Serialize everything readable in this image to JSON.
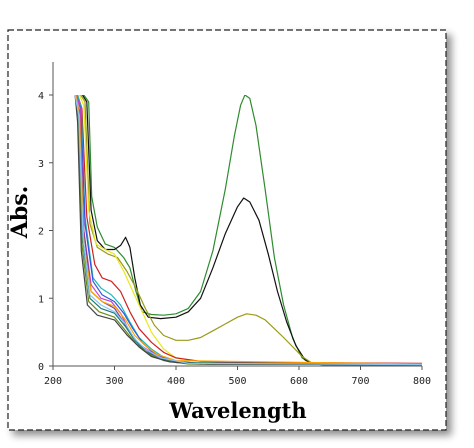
{
  "chart_data": {
    "type": "line",
    "title": "",
    "xlabel": "Wavelength",
    "ylabel": "Abs.",
    "xlim": [
      200,
      800
    ],
    "ylim": [
      0,
      4
    ],
    "xticks": [
      "200",
      "300",
      "400",
      "500",
      "600",
      "700",
      "800"
    ],
    "yticks": [
      "0",
      "1",
      "2",
      "3",
      "4"
    ],
    "grid": false,
    "legend": "none",
    "series": [
      {
        "color": "#2e8b2e",
        "points": [
          [
            250,
            4
          ],
          [
            258,
            3.9
          ],
          [
            263,
            2.5
          ],
          [
            272,
            2.05
          ],
          [
            285,
            1.8
          ],
          [
            300,
            1.75
          ],
          [
            315,
            1.6
          ],
          [
            325,
            1.45
          ],
          [
            335,
            1.1
          ],
          [
            345,
            0.8
          ],
          [
            360,
            0.76
          ],
          [
            380,
            0.75
          ],
          [
            400,
            0.77
          ],
          [
            420,
            0.85
          ],
          [
            440,
            1.1
          ],
          [
            460,
            1.7
          ],
          [
            480,
            2.6
          ],
          [
            495,
            3.4
          ],
          [
            505,
            3.85
          ],
          [
            512,
            4.0
          ],
          [
            520,
            3.95
          ],
          [
            530,
            3.55
          ],
          [
            545,
            2.6
          ],
          [
            560,
            1.6
          ],
          [
            575,
            0.9
          ],
          [
            590,
            0.4
          ],
          [
            605,
            0.12
          ],
          [
            620,
            0.03
          ],
          [
            640,
            0.02
          ],
          [
            700,
            0.02
          ],
          [
            800,
            0.02
          ]
        ]
      },
      {
        "color": "#111111",
        "points": [
          [
            248,
            4
          ],
          [
            255,
            3.9
          ],
          [
            262,
            2.3
          ],
          [
            272,
            1.85
          ],
          [
            285,
            1.72
          ],
          [
            300,
            1.72
          ],
          [
            310,
            1.78
          ],
          [
            318,
            1.9
          ],
          [
            325,
            1.75
          ],
          [
            333,
            1.3
          ],
          [
            342,
            0.9
          ],
          [
            355,
            0.72
          ],
          [
            375,
            0.7
          ],
          [
            400,
            0.72
          ],
          [
            420,
            0.8
          ],
          [
            440,
            1.0
          ],
          [
            460,
            1.45
          ],
          [
            480,
            1.95
          ],
          [
            500,
            2.35
          ],
          [
            510,
            2.48
          ],
          [
            520,
            2.42
          ],
          [
            535,
            2.15
          ],
          [
            550,
            1.65
          ],
          [
            565,
            1.1
          ],
          [
            580,
            0.65
          ],
          [
            595,
            0.3
          ],
          [
            610,
            0.09
          ],
          [
            625,
            0.03
          ],
          [
            640,
            0.02
          ],
          [
            800,
            0.02
          ]
        ]
      },
      {
        "color": "#9a9a18",
        "points": [
          [
            245,
            4
          ],
          [
            252,
            3.9
          ],
          [
            260,
            2.1
          ],
          [
            272,
            1.75
          ],
          [
            290,
            1.65
          ],
          [
            305,
            1.6
          ],
          [
            320,
            1.4
          ],
          [
            335,
            1.15
          ],
          [
            350,
            0.85
          ],
          [
            365,
            0.6
          ],
          [
            380,
            0.45
          ],
          [
            400,
            0.38
          ],
          [
            420,
            0.38
          ],
          [
            440,
            0.42
          ],
          [
            460,
            0.52
          ],
          [
            480,
            0.62
          ],
          [
            500,
            0.72
          ],
          [
            515,
            0.77
          ],
          [
            530,
            0.75
          ],
          [
            545,
            0.68
          ],
          [
            560,
            0.55
          ],
          [
            575,
            0.42
          ],
          [
            590,
            0.28
          ],
          [
            605,
            0.14
          ],
          [
            620,
            0.05
          ],
          [
            640,
            0.02
          ],
          [
            800,
            0.02
          ]
        ]
      },
      {
        "color": "#e8e820",
        "points": [
          [
            243,
            4
          ],
          [
            250,
            3.85
          ],
          [
            258,
            2.3
          ],
          [
            270,
            1.8
          ],
          [
            285,
            1.72
          ],
          [
            300,
            1.65
          ],
          [
            315,
            1.4
          ],
          [
            330,
            1.1
          ],
          [
            345,
            0.8
          ],
          [
            360,
            0.5
          ],
          [
            380,
            0.25
          ],
          [
            400,
            0.12
          ],
          [
            440,
            0.06
          ],
          [
            520,
            0.03
          ],
          [
            800,
            0.02
          ]
        ]
      },
      {
        "color": "#cc2222",
        "points": [
          [
            240,
            4
          ],
          [
            247,
            3.8
          ],
          [
            255,
            2.2
          ],
          [
            268,
            1.5
          ],
          [
            280,
            1.3
          ],
          [
            295,
            1.25
          ],
          [
            310,
            1.1
          ],
          [
            325,
            0.8
          ],
          [
            340,
            0.55
          ],
          [
            360,
            0.35
          ],
          [
            380,
            0.2
          ],
          [
            400,
            0.12
          ],
          [
            440,
            0.07
          ],
          [
            500,
            0.05
          ],
          [
            600,
            0.05
          ],
          [
            800,
            0.04
          ]
        ]
      },
      {
        "color": "#20b8b8",
        "points": [
          [
            240,
            4
          ],
          [
            246,
            3.8
          ],
          [
            252,
            2.2
          ],
          [
            265,
            1.3
          ],
          [
            278,
            1.15
          ],
          [
            295,
            1.05
          ],
          [
            310,
            0.9
          ],
          [
            325,
            0.65
          ],
          [
            340,
            0.42
          ],
          [
            360,
            0.25
          ],
          [
            380,
            0.13
          ],
          [
            400,
            0.07
          ],
          [
            450,
            0.03
          ],
          [
            800,
            0.02
          ]
        ]
      },
      {
        "color": "#3355dd",
        "points": [
          [
            238,
            4
          ],
          [
            245,
            3.8
          ],
          [
            252,
            2.1
          ],
          [
            265,
            1.25
          ],
          [
            280,
            1.05
          ],
          [
            300,
            0.95
          ],
          [
            315,
            0.78
          ],
          [
            330,
            0.55
          ],
          [
            345,
            0.35
          ],
          [
            360,
            0.22
          ],
          [
            380,
            0.12
          ],
          [
            400,
            0.07
          ],
          [
            450,
            0.03
          ],
          [
            800,
            0.02
          ]
        ]
      },
      {
        "color": "#d040c0",
        "points": [
          [
            238,
            4
          ],
          [
            244,
            3.8
          ],
          [
            250,
            2.0
          ],
          [
            262,
            1.2
          ],
          [
            278,
            1.0
          ],
          [
            295,
            0.95
          ],
          [
            310,
            0.78
          ],
          [
            325,
            0.5
          ],
          [
            340,
            0.32
          ],
          [
            360,
            0.2
          ],
          [
            380,
            0.1
          ],
          [
            420,
            0.04
          ],
          [
            800,
            0.02
          ]
        ]
      },
      {
        "color": "#7a3fa0",
        "points": [
          [
            236,
            4
          ],
          [
            243,
            3.75
          ],
          [
            250,
            2.0
          ],
          [
            262,
            1.1
          ],
          [
            280,
            0.95
          ],
          [
            300,
            0.85
          ],
          [
            315,
            0.65
          ],
          [
            330,
            0.42
          ],
          [
            345,
            0.28
          ],
          [
            365,
            0.15
          ],
          [
            385,
            0.08
          ],
          [
            420,
            0.04
          ],
          [
            800,
            0.02
          ]
        ]
      },
      {
        "color": "#1c7a7a",
        "points": [
          [
            236,
            4
          ],
          [
            242,
            3.7
          ],
          [
            248,
            1.9
          ],
          [
            260,
            1.0
          ],
          [
            278,
            0.85
          ],
          [
            300,
            0.78
          ],
          [
            318,
            0.58
          ],
          [
            333,
            0.38
          ],
          [
            350,
            0.22
          ],
          [
            370,
            0.12
          ],
          [
            400,
            0.05
          ],
          [
            800,
            0.02
          ]
        ]
      },
      {
        "color": "#6a8a1a",
        "points": [
          [
            236,
            4
          ],
          [
            241,
            3.7
          ],
          [
            247,
            1.8
          ],
          [
            258,
            0.95
          ],
          [
            275,
            0.8
          ],
          [
            300,
            0.72
          ],
          [
            318,
            0.52
          ],
          [
            335,
            0.33
          ],
          [
            355,
            0.18
          ],
          [
            380,
            0.08
          ],
          [
            420,
            0.03
          ],
          [
            800,
            0.02
          ]
        ]
      },
      {
        "color": "#444444",
        "points": [
          [
            236,
            4
          ],
          [
            240,
            3.6
          ],
          [
            246,
            1.7
          ],
          [
            256,
            0.9
          ],
          [
            272,
            0.75
          ],
          [
            300,
            0.68
          ],
          [
            320,
            0.46
          ],
          [
            340,
            0.28
          ],
          [
            360,
            0.14
          ],
          [
            390,
            0.06
          ],
          [
            440,
            0.03
          ],
          [
            800,
            0.02
          ]
        ]
      },
      {
        "color": "#ffa500",
        "points": [
          [
            237,
            4
          ],
          [
            243,
            3.7
          ],
          [
            250,
            1.8
          ],
          [
            262,
            1.1
          ],
          [
            280,
            0.95
          ],
          [
            300,
            0.88
          ],
          [
            318,
            0.68
          ],
          [
            333,
            0.45
          ],
          [
            350,
            0.3
          ],
          [
            370,
            0.17
          ],
          [
            400,
            0.08
          ],
          [
            800,
            0.03
          ]
        ]
      },
      {
        "color": "#88c8f0",
        "points": [
          [
            236,
            4
          ],
          [
            242,
            3.7
          ],
          [
            249,
            1.9
          ],
          [
            260,
            1.05
          ],
          [
            278,
            0.9
          ],
          [
            300,
            0.8
          ],
          [
            318,
            0.62
          ],
          [
            333,
            0.4
          ],
          [
            350,
            0.25
          ],
          [
            375,
            0.12
          ],
          [
            420,
            0.04
          ],
          [
            800,
            0.02
          ]
        ]
      }
    ]
  }
}
